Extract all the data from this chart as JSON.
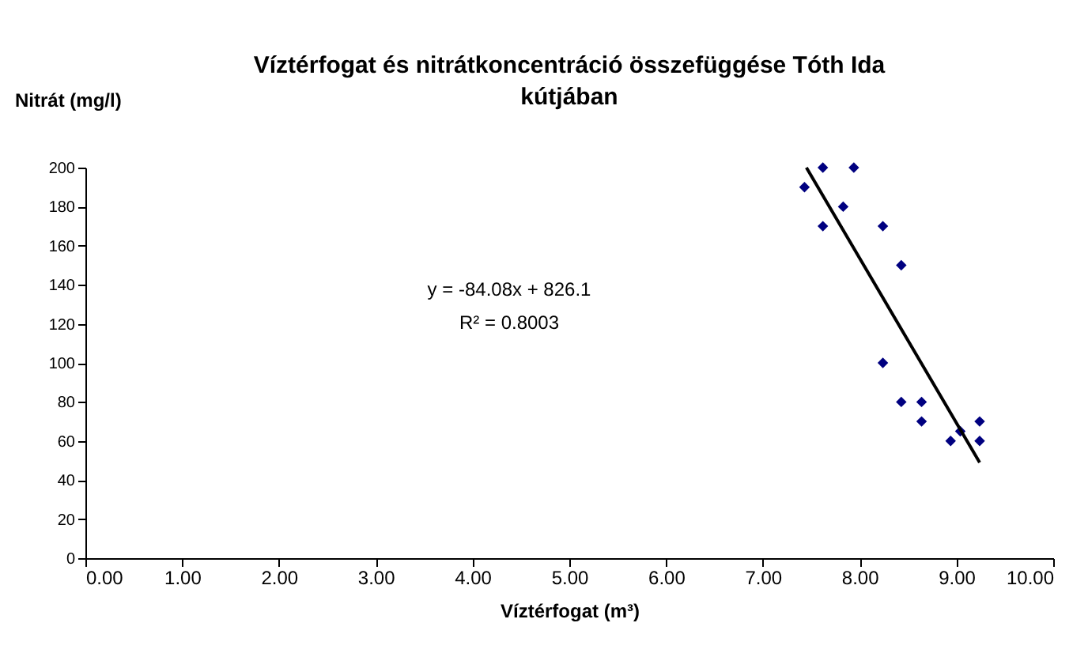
{
  "chart_data": {
    "type": "scatter",
    "title": [
      "Víztérfogat és nitrátkoncentráció összefüggése Tóth Ida",
      "kútjában"
    ],
    "xlabel": "Víztérfogat (m³)",
    "ylabel": "Nitrát (mg/l)",
    "marker": "diamond",
    "grid": false,
    "xlim": [
      0,
      10
    ],
    "ylim": [
      0,
      200
    ],
    "xticks": [
      {
        "value": 0,
        "label": "0.00"
      },
      {
        "value": 1,
        "label": "1.00"
      },
      {
        "value": 2,
        "label": "2.00"
      },
      {
        "value": 3,
        "label": "3.00"
      },
      {
        "value": 4,
        "label": "4.00"
      },
      {
        "value": 5,
        "label": "5.00"
      },
      {
        "value": 6,
        "label": "6.00"
      },
      {
        "value": 7,
        "label": "7.00"
      },
      {
        "value": 8,
        "label": "8.00"
      },
      {
        "value": 9,
        "label": "9.00"
      },
      {
        "value": 10,
        "label": "10.00"
      }
    ],
    "yticks": [
      0,
      20,
      40,
      60,
      80,
      100,
      120,
      140,
      160,
      180,
      200
    ],
    "series": [
      {
        "type": "scatter",
        "color": "#000080",
        "x": [
          7.43,
          7.62,
          7.94,
          7.83,
          7.62,
          8.24,
          8.43,
          8.24,
          8.43,
          8.64,
          8.64,
          9.04,
          8.94,
          9.24,
          9.24
        ],
        "values": [
          190,
          200,
          200,
          180,
          170,
          170,
          150,
          100,
          80,
          80,
          70,
          65,
          60,
          70,
          60
        ]
      },
      {
        "type": "line",
        "color": "#000000",
        "marker": "none",
        "x": [
          7.45,
          9.24
        ],
        "values": [
          200,
          49
        ]
      }
    ],
    "annotations": [
      "y = -84.08x + 826.1",
      "R² = 0.8003"
    ]
  }
}
